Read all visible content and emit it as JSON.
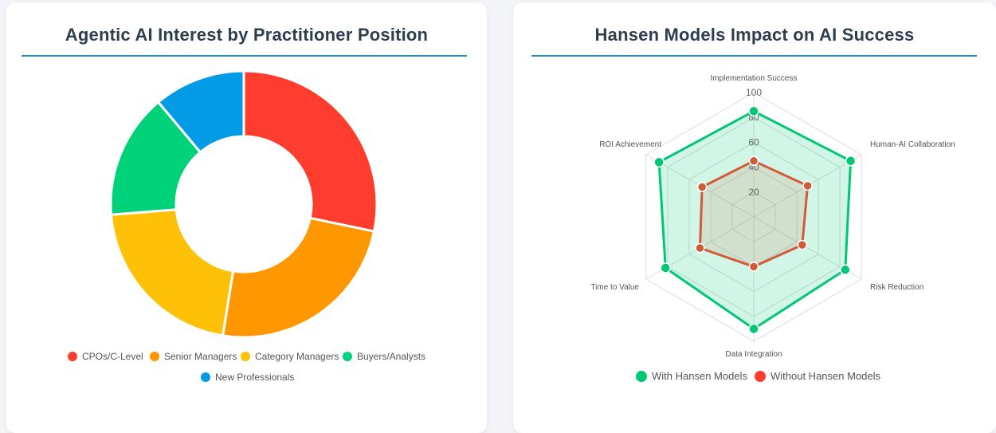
{
  "left_card": {
    "title": "Agentic AI Interest by Practitioner Position"
  },
  "right_card": {
    "title": "Hansen Models Impact on AI Success"
  },
  "chart_data": [
    {
      "type": "doughnut",
      "title": "Agentic AI Interest by Practitioner Position",
      "categories": [
        "CPOs/C-Level",
        "Senior Managers",
        "Category Managers",
        "Buyers/Analysts",
        "New Professionals"
      ],
      "values": [
        28,
        24,
        21,
        15,
        11
      ],
      "colors": [
        "#ff3d2e",
        "#ff9800",
        "#ffc107",
        "#00d27a",
        "#039be5"
      ],
      "legend_position": "bottom"
    },
    {
      "type": "radar",
      "title": "Hansen Models Impact on AI Success",
      "axes": [
        "Implementation Success",
        "Human-AI Collaboration",
        "Risk Reduction",
        "Data Integration",
        "Time to Value",
        "ROI Achievement"
      ],
      "r_ticks": [
        "20",
        "40",
        "60",
        "80",
        "100"
      ],
      "r_range": [
        0,
        100
      ],
      "series": [
        {
          "name": "With Hansen Models",
          "values": [
            85,
            90,
            85,
            90,
            82,
            88
          ],
          "color": "#00c774"
        },
        {
          "name": "Without Hansen Models",
          "values": [
            45,
            50,
            45,
            40,
            50,
            48
          ],
          "color": "#ff3d2e",
          "marker_color": "#d15a38"
        }
      ],
      "legend_position": "bottom"
    }
  ]
}
